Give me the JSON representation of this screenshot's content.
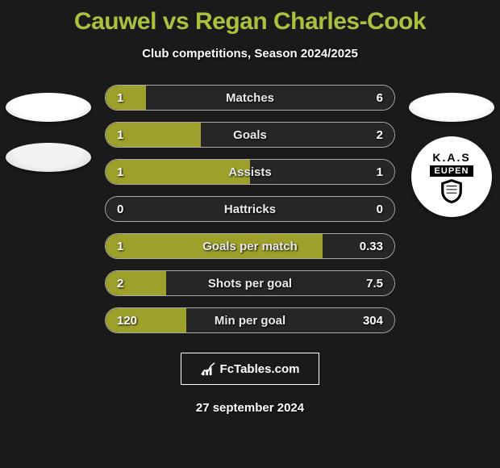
{
  "title": "Cauwel vs Regan Charles-Cook",
  "subtitle": "Club competitions, Season 2024/2025",
  "date": "27 september 2024",
  "fctables": "FcTables.com",
  "colors": {
    "left_fill": "#9da02b",
    "right_fill": "#737373",
    "title": "#a8c23e",
    "bg": "#1a1a1a"
  },
  "rows": [
    {
      "label": "Matches",
      "left": "1",
      "right": "6",
      "leftPct": 14,
      "rightPct": 0
    },
    {
      "label": "Goals",
      "left": "1",
      "right": "2",
      "leftPct": 33,
      "rightPct": 0
    },
    {
      "label": "Assists",
      "left": "1",
      "right": "1",
      "leftPct": 50,
      "rightPct": 0
    },
    {
      "label": "Hattricks",
      "left": "0",
      "right": "0",
      "leftPct": 0,
      "rightPct": 0
    },
    {
      "label": "Goals per match",
      "left": "1",
      "right": "0.33",
      "leftPct": 75,
      "rightPct": 0
    },
    {
      "label": "Shots per goal",
      "left": "2",
      "right": "7.5",
      "leftPct": 21,
      "rightPct": 0
    },
    {
      "label": "Min per goal",
      "left": "120",
      "right": "304",
      "leftPct": 28,
      "rightPct": 0
    }
  ],
  "right_logo": {
    "top": "K.A.S",
    "bottom": "EUPEN"
  }
}
